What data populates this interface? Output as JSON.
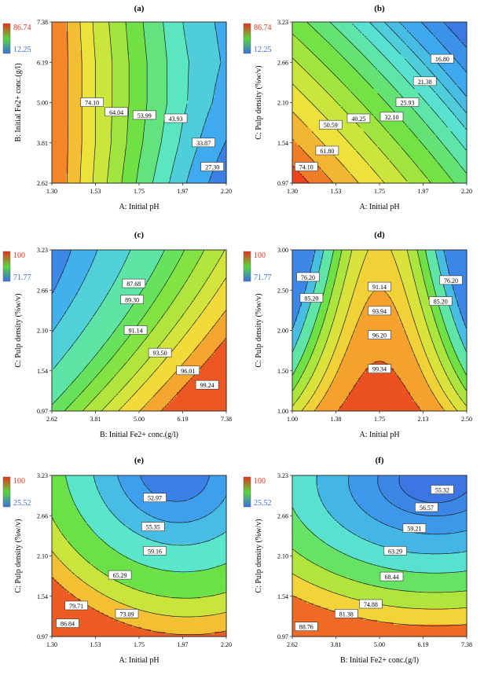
{
  "figure": {
    "background": "#ffffff"
  },
  "chart_data": [
    {
      "id": "a",
      "panel_label": "(a)",
      "type": "contour",
      "xlabel": "A: Initial pH",
      "ylabel": "B: Initial Fe2+ conc.(g/l)",
      "xticks": [
        "1.30",
        "1.53",
        "1.75",
        "1.97",
        "2.20"
      ],
      "yticks": [
        "2.62",
        "3.81",
        "5.00",
        "6.19",
        "7.38"
      ],
      "xlim": [
        1.3,
        2.2
      ],
      "ylim": [
        2.62,
        7.38
      ],
      "colorbar": {
        "max": "86.74",
        "min": "12.25",
        "max_color": "#e8311c",
        "min_color": "#3a6fe0"
      },
      "contour_labels": [
        "74.10",
        "64.04",
        "53.99",
        "43.93",
        "33.87",
        "27.30"
      ],
      "surface": {
        "kind": "x_curve",
        "field_min": 20.0,
        "field_max": 84.0,
        "levels": [
          80,
          74.1,
          69,
          64.04,
          59,
          53.99,
          49,
          43.93,
          39,
          33.87,
          27.3
        ],
        "xvals": [
          1.3,
          1.55,
          1.78,
          1.98,
          2.2
        ],
        "yvals": [
          2.62,
          3.81,
          5.0,
          6.19,
          7.38
        ],
        "grid": [
          [
            80,
            63,
            48,
            35,
            22
          ],
          [
            80,
            64,
            50,
            38,
            27
          ],
          [
            80,
            64,
            51,
            40,
            31
          ],
          [
            80,
            64,
            51,
            40,
            33
          ],
          [
            80,
            63,
            50,
            39,
            32
          ]
        ]
      }
    },
    {
      "id": "b",
      "panel_label": "(b)",
      "type": "contour",
      "xlabel": "A: Initial pH",
      "ylabel": "C: Pulp density (%w/v)",
      "xticks": [
        "1.30",
        "1.53",
        "1.75",
        "1.97",
        "2.20"
      ],
      "yticks": [
        "0.97",
        "1.54",
        "2.10",
        "2.66",
        "3.23"
      ],
      "xlim": [
        1.3,
        2.2
      ],
      "ylim": [
        0.97,
        3.23
      ],
      "colorbar": {
        "max": "86.74",
        "min": "12.25",
        "max_color": "#e8311c",
        "min_color": "#3a6fe0"
      },
      "contour_labels": [
        "16.80",
        "21.38",
        "25.93",
        "32.10",
        "40.25",
        "50.59",
        "61.80",
        "74.10"
      ],
      "surface": {
        "kind": "bilinear",
        "field_min": 12.0,
        "field_max": 84.0,
        "levels": [
          80,
          74.1,
          68,
          61.8,
          56,
          50.59,
          45,
          40.25,
          36,
          32.1,
          29,
          25.93,
          21.38,
          16.8
        ],
        "xvals": [
          1.3,
          2.2
        ],
        "yvals": [
          0.97,
          3.23
        ],
        "grid": [
          [
            84,
            42
          ],
          [
            48,
            12
          ]
        ]
      }
    },
    {
      "id": "c",
      "panel_label": "(c)",
      "type": "contour",
      "xlabel": "B: Initial Fe2+ conc.(g/l)",
      "ylabel": "C: Pulp density (%w/v)",
      "xticks": [
        "2.62",
        "3.81",
        "5.00",
        "6.19",
        "7.38"
      ],
      "yticks": [
        "0.97",
        "1.54",
        "2.10",
        "2.66",
        "3.23"
      ],
      "xlim": [
        2.62,
        7.38
      ],
      "ylim": [
        0.97,
        3.23
      ],
      "colorbar": {
        "max": "100",
        "min": "71.77",
        "max_color": "#e8311c",
        "min_color": "#3a6fe0"
      },
      "contour_labels": [
        "87.68",
        "89.30",
        "91.14",
        "93.50",
        "96.01",
        "99.24"
      ],
      "surface": {
        "kind": "quad",
        "field_min": 84.0,
        "field_max": 101.0,
        "levels": [
          86.5,
          87.68,
          89.3,
          91.14,
          92.3,
          93.5,
          94.8,
          96.01,
          97.6,
          99.24
        ],
        "xvals": [
          2.62,
          7.38
        ],
        "yvals": [
          0.97,
          3.23
        ],
        "params": [
          91.5,
          9.0,
          2.2,
          9.8,
          4.0
        ]
      }
    },
    {
      "id": "d",
      "panel_label": "(d)",
      "type": "contour",
      "xlabel": "A: Initial pH",
      "ylabel": "C: Pulp density (%w/v)",
      "xticks": [
        "1.00",
        "1.38",
        "1.75",
        "2.13",
        "2.50"
      ],
      "yticks": [
        "1.00",
        "1.50",
        "2.00",
        "2.50",
        "3.00"
      ],
      "xlim": [
        1.0,
        2.5
      ],
      "ylim": [
        1.0,
        3.0
      ],
      "colorbar": {
        "max": "100",
        "min": "71.77",
        "max_color": "#e8311c",
        "min_color": "#3a6fe0"
      },
      "contour_labels": [
        "76.20",
        "85.20",
        "91.14",
        "93.94",
        "96.20",
        "99.34",
        "76.20",
        "85.20"
      ],
      "surface": {
        "kind": "ridge",
        "field_min": 72.0,
        "field_max": 102.0,
        "levels": [
          76.2,
          80.7,
          85.2,
          88.2,
          91.14,
          93.94,
          96.2,
          99.34
        ],
        "xvals": [
          1.0,
          2.5
        ],
        "yvals": [
          1.0,
          3.0
        ],
        "params": [
          101.5,
          7.0,
          27.0
        ]
      }
    },
    {
      "id": "e",
      "panel_label": "(e)",
      "type": "contour",
      "xlabel": "A: Initial pH",
      "ylabel": "C: Pulp density (%w/v)",
      "xticks": [
        "1.30",
        "1.53",
        "1.75",
        "1.97",
        "2.20"
      ],
      "yticks": [
        "0.97",
        "1.54",
        "2.10",
        "2.66",
        "3.23"
      ],
      "xlim": [
        1.3,
        2.2
      ],
      "ylim": [
        0.97,
        3.23
      ],
      "colorbar": {
        "max": "100",
        "min": "25.52",
        "max_color": "#e8311c",
        "min_color": "#3a6fe0"
      },
      "contour_labels": [
        "52.97",
        "55.35",
        "59.16",
        "65.29",
        "79.71",
        "73.09",
        "86.84"
      ],
      "surface": {
        "kind": "bowl",
        "field_min": 48.0,
        "field_max": 92.0,
        "levels": [
          52.97,
          55.35,
          59.16,
          65.29,
          73.09,
          79.71,
          86.84
        ],
        "xvals": [
          1.3,
          2.2
        ],
        "yvals": [
          0.97,
          3.23
        ],
        "params": [
          51.5,
          35.0,
          33.0,
          0.7,
          1.05
        ]
      }
    },
    {
      "id": "f",
      "panel_label": "(f)",
      "type": "contour",
      "xlabel": "B: Initial Fe2+ conc.(g/l)",
      "ylabel": "C: Pulp density (%w/v)",
      "xticks": [
        "2.62",
        "3.81",
        "5.00",
        "6.19",
        "7.38"
      ],
      "yticks": [
        "0.97",
        "1.54",
        "2.10",
        "2.66",
        "3.23"
      ],
      "xlim": [
        2.62,
        7.38
      ],
      "ylim": [
        0.97,
        3.23
      ],
      "colorbar": {
        "max": "100",
        "min": "25.52",
        "max_color": "#e8311c",
        "min_color": "#3a6fe0"
      },
      "contour_labels": [
        "55.32",
        "56.57",
        "59.21",
        "63.29",
        "68.44",
        "74.88",
        "81.38",
        "88.76"
      ],
      "surface": {
        "kind": "bowl",
        "field_min": 53.0,
        "field_max": 95.0,
        "levels": [
          55.32,
          56.57,
          59.21,
          63.29,
          68.44,
          74.88,
          81.38,
          88.76
        ],
        "xvals": [
          2.62,
          7.38
        ],
        "yvals": [
          0.97,
          3.23
        ],
        "params": [
          54.5,
          19.0,
          42.0,
          0.82,
          0.97
        ]
      }
    }
  ]
}
